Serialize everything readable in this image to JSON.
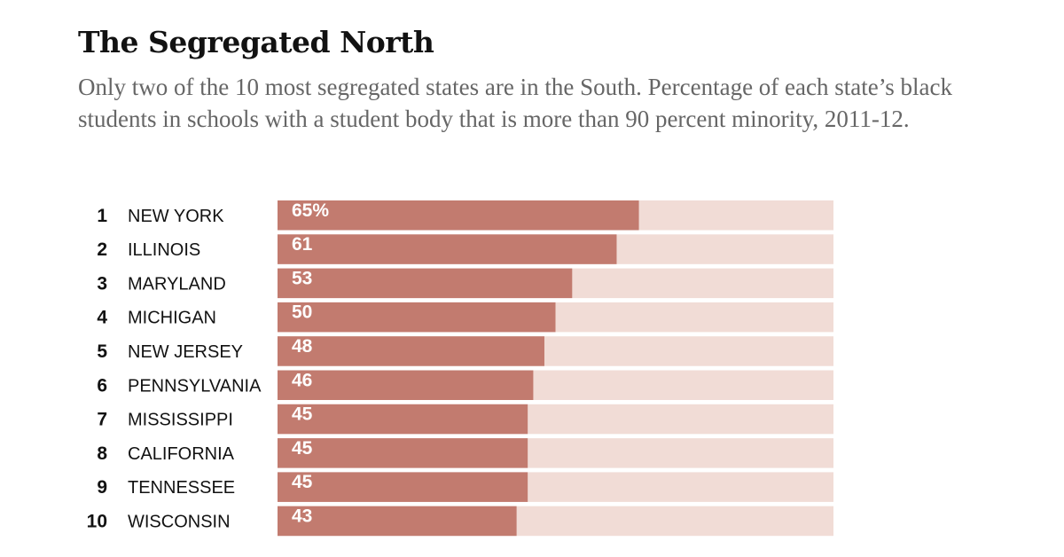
{
  "chart_data": {
    "type": "bar",
    "orientation": "horizontal",
    "title": "The Segregated North",
    "subtitle": "Only two of the 10 most segregated states are in the South. Percentage of each state’s black students in schools with a student body that is more than 90 percent minority, 2011-12.",
    "ranks": [
      "1",
      "2",
      "3",
      "4",
      "5",
      "6",
      "7",
      "8",
      "9",
      "10"
    ],
    "categories": [
      "NEW YORK",
      "ILLINOIS",
      "MARYLAND",
      "MICHIGAN",
      "NEW JERSEY",
      "PENNSYLVANIA",
      "MISSISSIPPI",
      "CALIFORNIA",
      "TENNESSEE",
      "WISCONSIN"
    ],
    "values": [
      65,
      61,
      53,
      50,
      48,
      46,
      45,
      45,
      45,
      43
    ],
    "value_labels": [
      "65%",
      "61",
      "53",
      "50",
      "48",
      "46",
      "45",
      "45",
      "45",
      "43"
    ],
    "xlim": [
      0,
      100
    ],
    "grid": false,
    "colors": {
      "bar": "#c27b6f",
      "track": "#f1dcd6"
    }
  }
}
